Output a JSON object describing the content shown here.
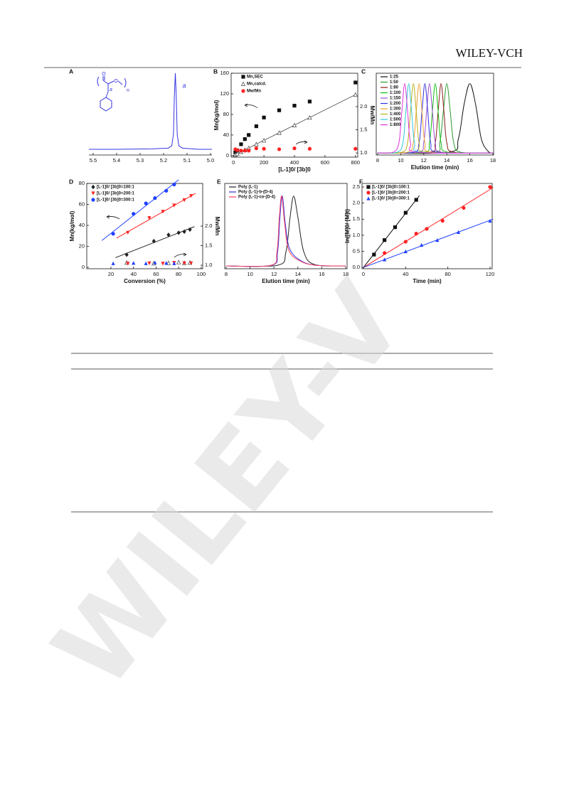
{
  "header": {
    "brand": "WILEY-VCH"
  },
  "watermark": "WILEY-V",
  "chart_data": [
    {
      "panel": "A",
      "type": "line",
      "frame": false,
      "x": [
        5.518,
        5.4,
        5.25,
        5.18,
        5.165,
        5.158,
        5.154,
        5.15,
        5.146,
        5.142,
        5.135,
        5.12,
        5.05,
        4.994
      ],
      "series": [
        {
          "color": "#3535e0",
          "values": [
            0.005,
            0.005,
            0.01,
            0.02,
            0.05,
            0.2,
            0.7,
            1.0,
            0.7,
            0.2,
            0.05,
            0.02,
            0.005,
            0.005
          ]
        }
      ],
      "xlim": [
        5.518,
        4.994
      ],
      "ylim": [
        -0.07,
        1.0
      ],
      "xticks": [
        {
          "value": 5.5,
          "label": "5.5"
        },
        5.4,
        5.3,
        5.2,
        5.1,
        {
          "value": 5.0,
          "label": "5.0"
        }
      ],
      "annotation": "a",
      "structure_labels": [
        "O",
        "O",
        "n",
        "a"
      ]
    },
    {
      "panel": "B",
      "type": "scatter",
      "frame": true,
      "legend": "upper left",
      "x_label": "[L-1]0/ [3b]0",
      "y_label": "Mn(kg/mol)",
      "y2_label": "Mw/Mn",
      "xlim": [
        -15,
        815
      ],
      "ylim": [
        -3,
        160
      ],
      "y2lim": [
        0.91,
        2.72
      ],
      "xticks": [
        0,
        200,
        400,
        600,
        800
      ],
      "yticks": [
        0,
        40,
        80,
        120,
        160
      ],
      "y2ticks": [
        {
          "value": 1.0,
          "label": "1.0"
        },
        1.5,
        {
          "value": 2.0,
          "label": "2.0"
        }
      ],
      "series": [
        {
          "name": "Mn,SEC",
          "color": "#111111",
          "marker": "square",
          "axis": "y",
          "x": [
            12.5,
            25,
            50,
            75,
            100,
            150,
            200,
            300,
            400,
            500,
            800
          ],
          "values": [
            6,
            10,
            22,
            32,
            40,
            57,
            74,
            88,
            97,
            105,
            142
          ]
        },
        {
          "name": "Mn,calcd.",
          "color": "#555555",
          "marker": "triangle-open",
          "axis": "y",
          "fit": "connect",
          "x": [
            12.5,
            25,
            50,
            75,
            100,
            150,
            200,
            300,
            400,
            500,
            800
          ],
          "values": [
            1.9,
            3.7,
            7.4,
            11.1,
            14.8,
            22.2,
            29.6,
            44.4,
            59.2,
            74,
            118.4
          ]
        },
        {
          "name": "Mw/Mn",
          "color": "#ff2020",
          "marker": "circle",
          "axis": "y2",
          "x": [
            12.5,
            25,
            50,
            75,
            100,
            150,
            200,
            300,
            400,
            500,
            800
          ],
          "values": [
            1.08,
            1.06,
            1.05,
            1.05,
            1.05,
            1.1,
            1.09,
            1.08,
            1.1,
            1.09,
            1.09
          ]
        }
      ]
    },
    {
      "panel": "C",
      "type": "line",
      "frame": true,
      "legend": "upper left",
      "x_label": "Elution time (min)",
      "xlim": [
        7.88,
        18.06
      ],
      "ylim": [
        -0.03,
        1.15
      ],
      "xticks": [
        8,
        10,
        12,
        14,
        16,
        18
      ],
      "series": [
        {
          "name": "1:25",
          "color": "#111111",
          "x": [
            8,
            14.2,
            15.0,
            15.5,
            16.0,
            16.5,
            17.0,
            17.6,
            18
          ],
          "values": [
            0,
            0.01,
            0.2,
            0.7,
            1,
            0.7,
            0.2,
            0.02,
            0
          ]
        },
        {
          "name": "1:50",
          "color": "#2f9a2f",
          "x": [
            8,
            12.9,
            13.4,
            13.7,
            14.0,
            14.3,
            14.6,
            15.2,
            18
          ],
          "values": [
            0,
            0.01,
            0.15,
            0.6,
            1,
            0.6,
            0.15,
            0.01,
            0
          ]
        },
        {
          "name": "1:80",
          "color": "#8b1a1a",
          "x": [
            8,
            12.5,
            13.0,
            13.25,
            13.5,
            13.75,
            14.0,
            14.6,
            18
          ],
          "values": [
            0,
            0.01,
            0.15,
            0.6,
            1,
            0.6,
            0.15,
            0.01,
            0
          ]
        },
        {
          "name": "1:100",
          "color": "#10c010",
          "x": [
            8,
            12.0,
            12.5,
            12.75,
            13.0,
            13.25,
            13.5,
            14.1,
            18
          ],
          "values": [
            0,
            0.01,
            0.15,
            0.6,
            1,
            0.6,
            0.15,
            0.01,
            0
          ]
        },
        {
          "name": "1:150",
          "color": "#9a4fd0",
          "x": [
            8,
            11.5,
            12.0,
            12.25,
            12.5,
            12.75,
            13.0,
            13.6,
            18
          ],
          "values": [
            0,
            0.01,
            0.15,
            0.6,
            1,
            0.6,
            0.15,
            0.01,
            0
          ]
        },
        {
          "name": "1:200",
          "color": "#3030e0",
          "x": [
            8,
            11.1,
            11.6,
            11.85,
            12.1,
            12.35,
            12.6,
            13.2,
            18
          ],
          "values": [
            0,
            0.01,
            0.15,
            0.6,
            1,
            0.6,
            0.15,
            0.01,
            0
          ]
        },
        {
          "name": "1:300",
          "color": "#f0a030",
          "x": [
            8,
            10.6,
            11.1,
            11.35,
            11.6,
            11.85,
            12.1,
            12.7,
            18
          ],
          "values": [
            0,
            0.01,
            0.15,
            0.6,
            1,
            0.6,
            0.15,
            0.01,
            0
          ]
        },
        {
          "name": "1:400",
          "color": "#b8b020",
          "x": [
            8,
            10.1,
            10.6,
            10.85,
            11.1,
            11.35,
            11.6,
            12.2,
            18
          ],
          "values": [
            0,
            0.01,
            0.15,
            0.6,
            1,
            0.6,
            0.15,
            0.01,
            0
          ]
        },
        {
          "name": "1:500",
          "color": "#30c8d8",
          "x": [
            8,
            9.7,
            10.2,
            10.45,
            10.7,
            10.95,
            11.2,
            11.8,
            18
          ],
          "values": [
            0,
            0.01,
            0.15,
            0.6,
            1,
            0.6,
            0.15,
            0.01,
            0
          ]
        },
        {
          "name": "1:800",
          "color": "#e030e0",
          "x": [
            8,
            9.35,
            9.85,
            10.1,
            10.35,
            10.6,
            10.85,
            11.45,
            18
          ],
          "values": [
            0,
            0.01,
            0.15,
            0.6,
            1,
            0.6,
            0.15,
            0.01,
            0
          ]
        }
      ]
    },
    {
      "panel": "D",
      "type": "scatter",
      "frame": true,
      "legend": "upper left",
      "x_label": "Conversion (%)",
      "y_label": "Mn(kg/mol)",
      "y2_label": "Mw/Mn",
      "xlim": [
        -1.4,
        101.3
      ],
      "ylim": [
        -1.36,
        80
      ],
      "y2lim": [
        0.91,
        3.09
      ],
      "xticks": [
        20,
        40,
        60,
        80,
        100
      ],
      "yticks": [
        0,
        20,
        40,
        60,
        80
      ],
      "y2ticks": [
        {
          "value": 1.0,
          "label": "1.0"
        },
        1.5,
        {
          "value": 2.0,
          "label": "2.0"
        }
      ],
      "series": [
        {
          "name": "[L-1]0/ [3b]0=100:1",
          "color": "#222222",
          "marker": "diamond",
          "axis": "y",
          "fit": "linear",
          "x": [
            34,
            58,
            71,
            80,
            85,
            90
          ],
          "values": [
            12,
            25,
            31,
            33,
            34,
            36
          ]
        },
        {
          "name": "[L-1]0/ [3b]0=200:1",
          "color": "#ff2020",
          "marker": "triangle-down",
          "axis": "y",
          "fit": "linear",
          "x": [
            35,
            54,
            66,
            76,
            85,
            91
          ],
          "values": [
            33,
            47,
            53,
            59,
            64,
            68
          ]
        },
        {
          "name": "[L-1]0/ [3b]0=300:1",
          "color": "#2040ff",
          "marker": "circle",
          "axis": "y",
          "fit": "linear",
          "x": [
            22,
            40,
            51,
            59,
            69,
            76
          ],
          "values": [
            32,
            51,
            61,
            66,
            73,
            79
          ]
        },
        {
          "color": "#555555",
          "marker": "triangle-open",
          "axis": "y2",
          "x": [
            34,
            58,
            71,
            80,
            85,
            90
          ],
          "values": [
            1.07,
            1.05,
            1.06,
            1.08,
            1.06,
            1.07
          ]
        },
        {
          "color": "#ff2020",
          "marker": "triangle-down",
          "axis": "y2",
          "x": [
            35,
            54,
            66,
            76,
            85,
            91
          ],
          "values": [
            1.04,
            1.05,
            1.04,
            1.06,
            1.05,
            1.05
          ]
        },
        {
          "color": "#2040ff",
          "marker": "triangle",
          "axis": "y2",
          "x": [
            22,
            40,
            51,
            59,
            69,
            76
          ],
          "values": [
            1.05,
            1.06,
            1.05,
            1.07,
            1.06,
            1.05
          ]
        }
      ]
    },
    {
      "panel": "E",
      "type": "line",
      "frame": true,
      "legend": "upper left",
      "x_label": "Elution time (min)",
      "xlim": [
        7.88,
        18.12
      ],
      "ylim": [
        -0.04,
        1.18
      ],
      "xticks": [
        8,
        10,
        12,
        14,
        16,
        18
      ],
      "series": [
        {
          "name": "Poly (L-1)",
          "color": "#222222",
          "x": [
            8,
            12.3,
            13.0,
            13.35,
            13.65,
            14.0,
            14.5,
            15.4,
            18
          ],
          "values": [
            0,
            0.01,
            0.2,
            0.7,
            1,
            0.7,
            0.2,
            0.02,
            0
          ]
        },
        {
          "name": "Poly (L-1)-b-(D-4)",
          "color": "#3030e0",
          "x": [
            8,
            11.8,
            12.3,
            12.5,
            12.7,
            12.95,
            13.3,
            14.2,
            15.5,
            18
          ],
          "values": [
            0,
            0.01,
            0.2,
            0.7,
            1,
            0.6,
            0.25,
            0.08,
            0.01,
            0
          ]
        },
        {
          "name": "Poly (L-1)-co-(D-4)",
          "color": "#ff4060",
          "x": [
            8,
            11.75,
            12.25,
            12.45,
            12.65,
            12.9,
            13.25,
            14.2,
            15.5,
            18
          ],
          "values": [
            0,
            0.01,
            0.2,
            0.7,
            1,
            0.6,
            0.22,
            0.07,
            0.01,
            0
          ]
        }
      ]
    },
    {
      "panel": "F",
      "type": "scatter",
      "frame": true,
      "legend": "upper left",
      "x_label": "Time (min)",
      "y_label": "ln([M]0/ [M]t)",
      "xlim": [
        -1.35,
        122
      ],
      "ylim": [
        -0.04,
        2.61
      ],
      "xticks": [
        0,
        40,
        80,
        120
      ],
      "yticks": [
        {
          "value": 0,
          "label": "0.0"
        },
        0.5,
        {
          "value": 1,
          "label": "1.0"
        },
        1.5,
        {
          "value": 2,
          "label": "2.0"
        },
        2.5
      ],
      "series": [
        {
          "name": "[L-1]0/ [3b]0=100:1",
          "color": "#111111",
          "marker": "square",
          "axis": "y",
          "fit": "origin",
          "x": [
            10,
            20,
            30,
            40,
            50
          ],
          "values": [
            0.4,
            0.85,
            1.25,
            1.7,
            2.1
          ]
        },
        {
          "name": "[L-1]0/ [3b]0=200:1",
          "color": "#ff2020",
          "marker": "circle",
          "axis": "y",
          "fit": "origin",
          "x": [
            20,
            40,
            50,
            60,
            75,
            95,
            120
          ],
          "values": [
            0.45,
            0.8,
            1.05,
            1.2,
            1.45,
            1.85,
            2.5
          ]
        },
        {
          "name": "[L-1]0/ [3b]0=300:1",
          "color": "#2040ff",
          "marker": "triangle",
          "axis": "y",
          "fit": "origin",
          "x": [
            20,
            40,
            55,
            70,
            90,
            120
          ],
          "values": [
            0.25,
            0.5,
            0.7,
            0.85,
            1.1,
            1.45
          ]
        }
      ]
    }
  ]
}
